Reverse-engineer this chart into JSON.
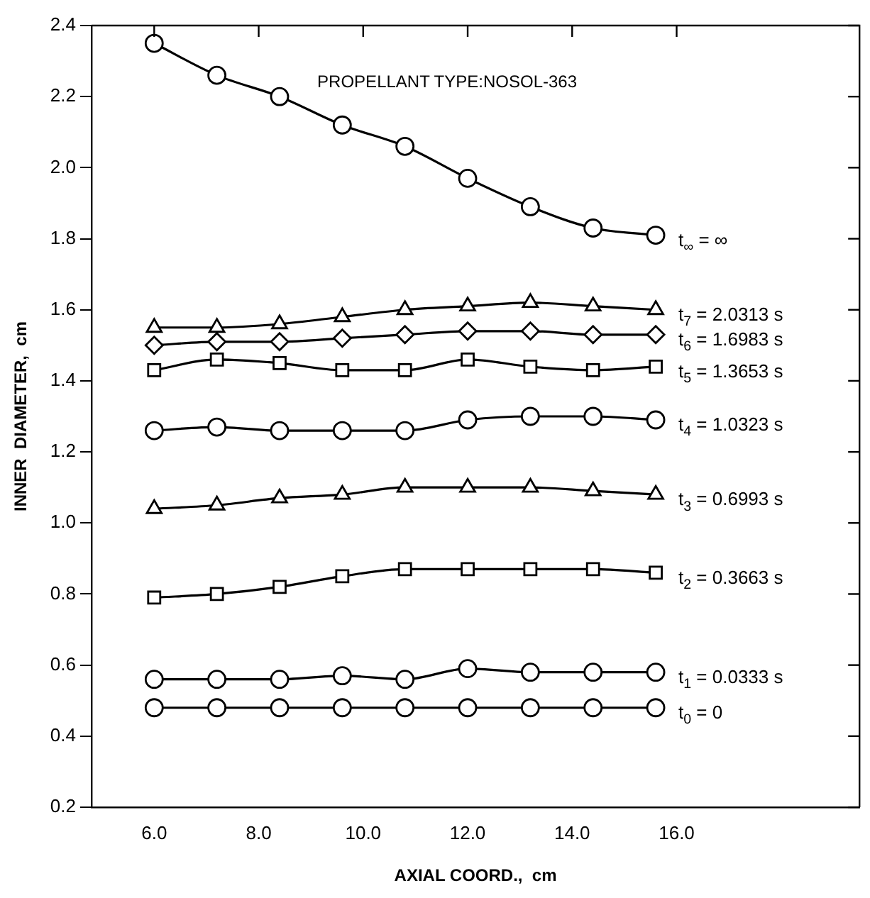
{
  "chart_data": {
    "type": "line",
    "xlabel": "AXIAL COORD.,  cm",
    "ylabel": "INNER  DIAMETER,  cm",
    "annotations": [
      "PROPELLANT TYPE:NOSOL-363"
    ],
    "x": [
      6.0,
      7.2,
      8.4,
      9.6,
      10.8,
      12.0,
      13.2,
      14.4,
      15.6
    ],
    "xlim": [
      4.8,
      19.5
    ],
    "xticks": [
      {
        "value": 6,
        "label": "6.0"
      },
      {
        "value": 8,
        "label": "8.0"
      },
      {
        "value": 10,
        "label": "10.0"
      },
      {
        "value": 12,
        "label": "12.0"
      },
      {
        "value": 14,
        "label": "14.0"
      },
      {
        "value": 16,
        "label": "16.0"
      }
    ],
    "ylim": [
      0.2,
      2.4
    ],
    "yticks": [
      0.2,
      0.4,
      0.6,
      0.8,
      {
        "value": 1.0,
        "label": "1.0"
      },
      1.2,
      1.4,
      1.6,
      1.8,
      {
        "value": 2.0,
        "label": "2.0"
      },
      2.2,
      2.4
    ],
    "grid": false,
    "legend": false,
    "line_style": "solid",
    "series": [
      {
        "name": "t$_{∞}$ = ∞",
        "color": "#000000",
        "marker": "circle",
        "values": [
          2.35,
          2.26,
          2.2,
          2.12,
          2.06,
          1.97,
          1.89,
          1.83,
          1.81
        ]
      },
      {
        "name": "t$_{7}$ = 2.0313 s",
        "color": "#000000",
        "marker": "triangle",
        "values": [
          1.55,
          1.55,
          1.56,
          1.58,
          1.6,
          1.61,
          1.62,
          1.61,
          1.6
        ]
      },
      {
        "name": "t$_{6}$ = 1.6983 s",
        "color": "#000000",
        "marker": "diamond",
        "values": [
          1.5,
          1.51,
          1.51,
          1.52,
          1.53,
          1.54,
          1.54,
          1.53,
          1.53
        ]
      },
      {
        "name": "t$_{5}$ = 1.3653 s",
        "color": "#000000",
        "marker": "square",
        "values": [
          1.43,
          1.46,
          1.45,
          1.43,
          1.43,
          1.46,
          1.44,
          1.43,
          1.44
        ]
      },
      {
        "name": "t$_{4}$ = 1.0323 s",
        "color": "#000000",
        "marker": "circle",
        "values": [
          1.26,
          1.27,
          1.26,
          1.26,
          1.26,
          1.29,
          1.3,
          1.3,
          1.29
        ]
      },
      {
        "name": "t$_{3}$ = 0.6993 s",
        "color": "#000000",
        "marker": "triangle",
        "values": [
          1.04,
          1.05,
          1.07,
          1.08,
          1.1,
          1.1,
          1.1,
          1.09,
          1.08
        ]
      },
      {
        "name": "t$_{2}$ = 0.3663 s",
        "color": "#000000",
        "marker": "square",
        "values": [
          0.79,
          0.8,
          0.82,
          0.85,
          0.87,
          0.87,
          0.87,
          0.87,
          0.86
        ]
      },
      {
        "name": "t$_{1}$ = 0.0333 s",
        "color": "#000000",
        "marker": "circle",
        "values": [
          0.56,
          0.56,
          0.56,
          0.57,
          0.56,
          0.59,
          0.58,
          0.58,
          0.58
        ]
      },
      {
        "name": "t$_{0}$ = 0",
        "color": "#000000",
        "marker": "circle",
        "values": [
          0.48,
          0.48,
          0.48,
          0.48,
          0.48,
          0.48,
          0.48,
          0.48,
          0.48
        ]
      }
    ]
  }
}
